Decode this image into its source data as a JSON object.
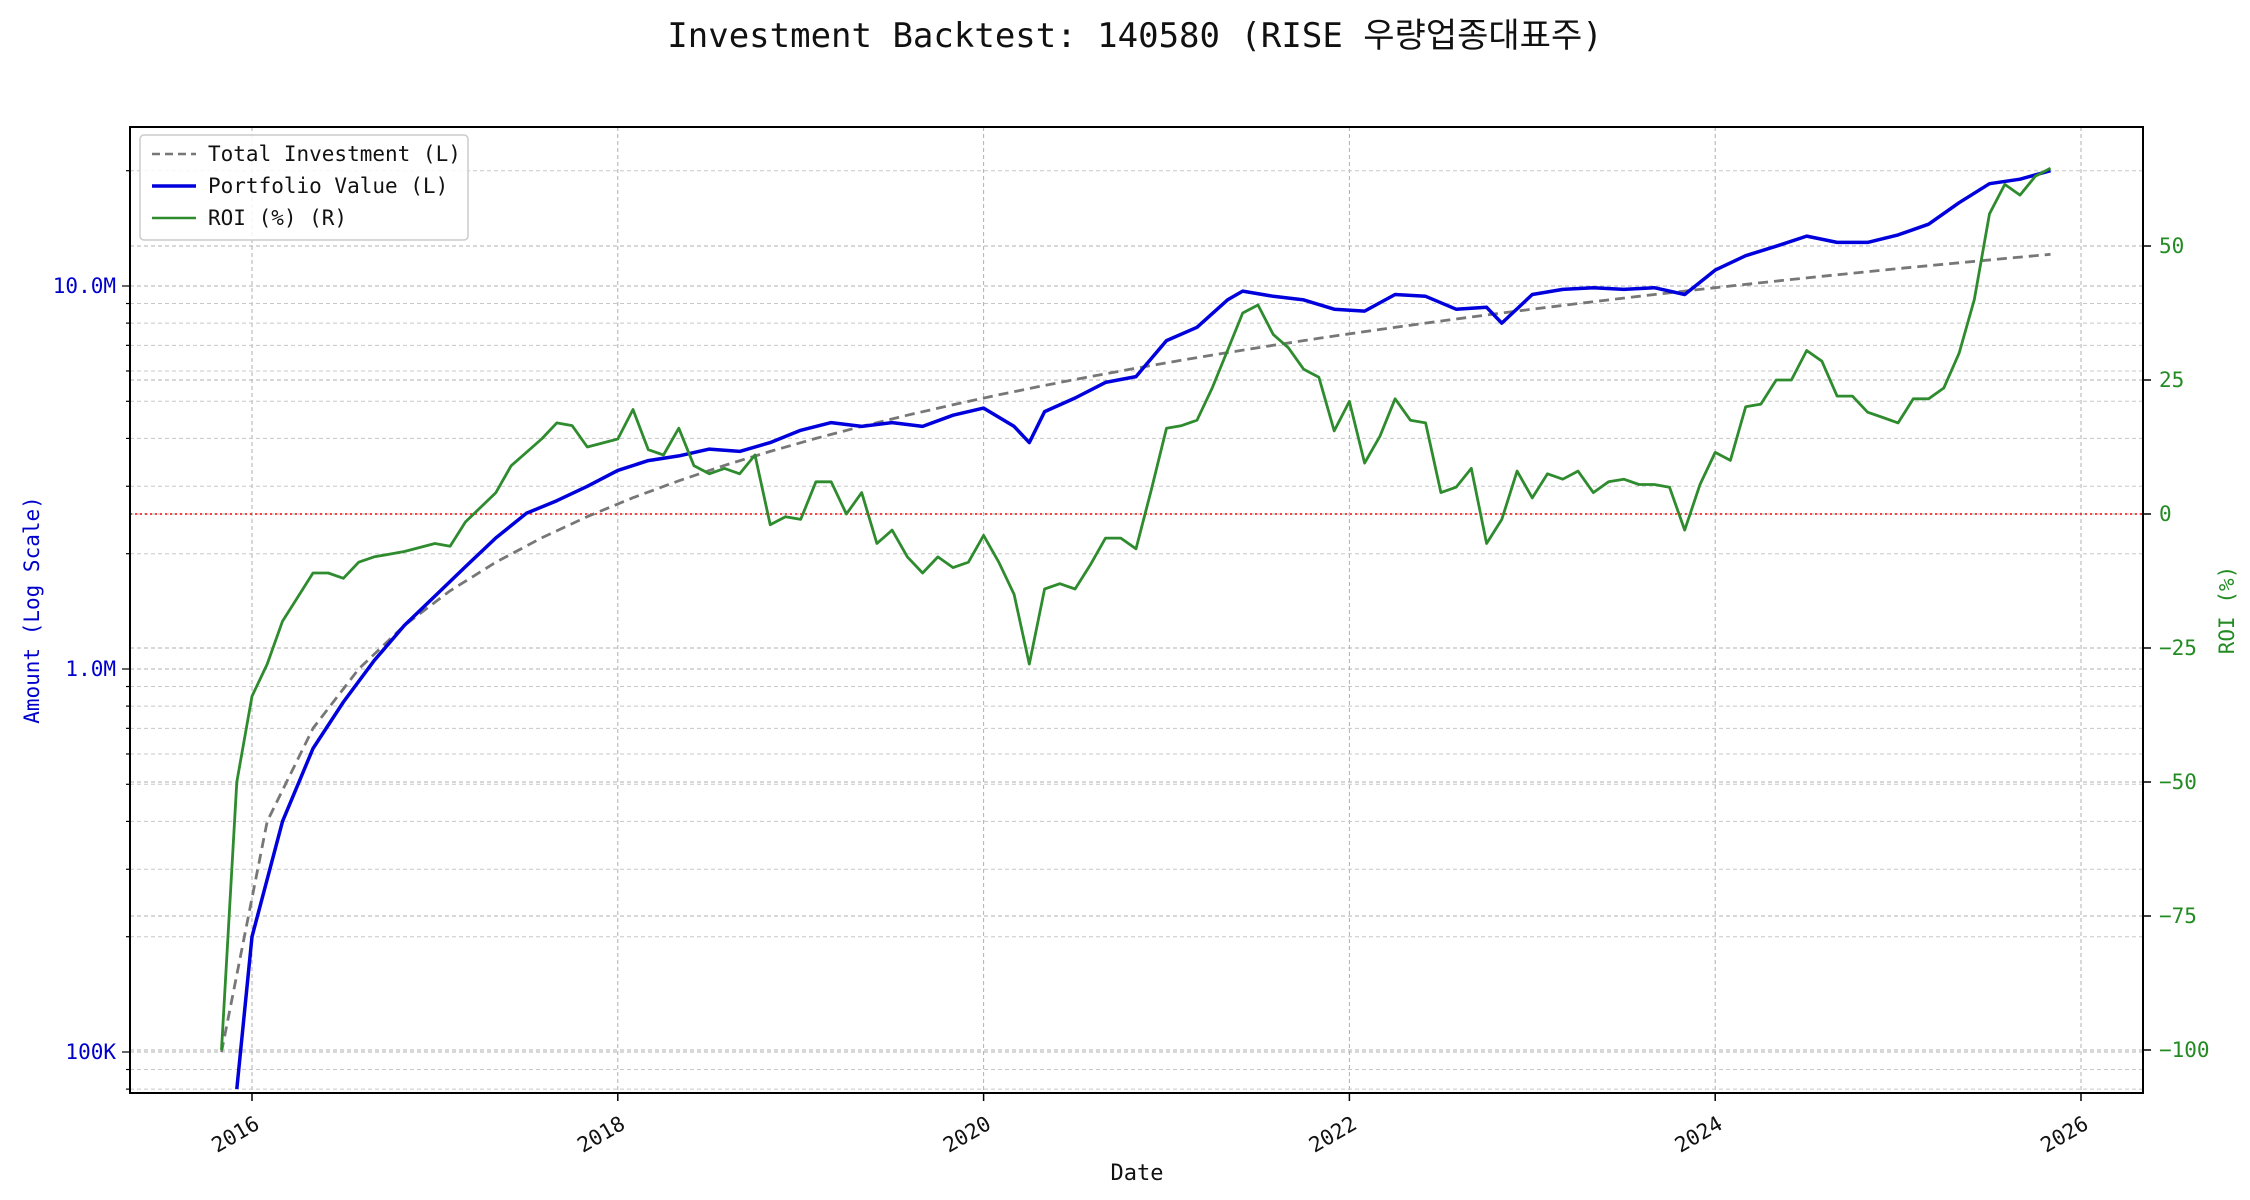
{
  "chart_data": {
    "type": "line",
    "title": "Investment Backtest: 140580 (RISE 우량업종대표주)",
    "xlabel": "Date",
    "ylabel_left": "Amount (Log Scale)",
    "ylabel_right": "ROI (%)",
    "y_left_scale": "log",
    "y_left_ticks": [
      "100K",
      "1.0M",
      "10.0M"
    ],
    "y_right_ticks": [
      "−100",
      "−75",
      "−50",
      "−25",
      "0",
      "25",
      "50"
    ],
    "x_ticks": [
      "2016",
      "2018",
      "2020",
      "2022",
      "2024",
      "2026"
    ],
    "grid": true,
    "legend_position": "top-left",
    "reference_line": {
      "axis": "right",
      "value": 0,
      "color": "#ff0000",
      "style": "dotted"
    },
    "colors": {
      "total": "#777777",
      "portfolio": "#0000dd",
      "roi": "#2e8b2e"
    },
    "series": [
      {
        "name": "Total Investment (L)",
        "axis": "left",
        "style": "dashed",
        "x": [
          "2015-11",
          "2016-02",
          "2016-05",
          "2016-08",
          "2016-11",
          "2017-02",
          "2017-05",
          "2017-08",
          "2017-11",
          "2018-02",
          "2018-05",
          "2018-08",
          "2018-11",
          "2019-02",
          "2019-05",
          "2019-08",
          "2019-11",
          "2020-02",
          "2020-05",
          "2020-08",
          "2020-11",
          "2021-02",
          "2021-05",
          "2021-08",
          "2021-11",
          "2022-02",
          "2022-05",
          "2022-08",
          "2022-11",
          "2023-02",
          "2023-05",
          "2023-08",
          "2023-11",
          "2024-02",
          "2024-05",
          "2024-08",
          "2024-11",
          "2025-02",
          "2025-05",
          "2025-08",
          "2025-11"
        ],
        "values": [
          100000,
          400000,
          700000,
          1000000,
          1300000,
          1600000,
          1900000,
          2200000,
          2500000,
          2800000,
          3100000,
          3400000,
          3700000,
          4000000,
          4300000,
          4600000,
          4900000,
          5200000,
          5500000,
          5800000,
          6100000,
          6400000,
          6700000,
          7000000,
          7300000,
          7600000,
          7900000,
          8200000,
          8500000,
          8800000,
          9100000,
          9400000,
          9700000,
          10000000,
          10300000,
          10600000,
          10900000,
          11200000,
          11500000,
          11800000,
          12100000
        ]
      },
      {
        "name": "Portfolio Value (L)",
        "axis": "left",
        "style": "solid",
        "x": [
          "2015-12",
          "2016-01",
          "2016-03",
          "2016-05",
          "2016-07",
          "2016-09",
          "2016-11",
          "2017-01",
          "2017-03",
          "2017-05",
          "2017-07",
          "2017-09",
          "2017-11",
          "2018-01",
          "2018-03",
          "2018-05",
          "2018-07",
          "2018-09",
          "2018-11",
          "2019-01",
          "2019-03",
          "2019-05",
          "2019-07",
          "2019-09",
          "2019-11",
          "2020-01",
          "2020-03",
          "2020-04",
          "2020-05",
          "2020-07",
          "2020-09",
          "2020-11",
          "2021-01",
          "2021-03",
          "2021-05",
          "2021-06",
          "2021-08",
          "2021-10",
          "2021-12",
          "2022-02",
          "2022-04",
          "2022-06",
          "2022-08",
          "2022-10",
          "2022-11",
          "2023-01",
          "2023-03",
          "2023-05",
          "2023-07",
          "2023-09",
          "2023-11",
          "2024-01",
          "2024-03",
          "2024-05",
          "2024-07",
          "2024-09",
          "2024-11",
          "2025-01",
          "2025-03",
          "2025-05",
          "2025-07",
          "2025-09",
          "2025-11"
        ],
        "values": [
          80000,
          200000,
          400000,
          620000,
          820000,
          1050000,
          1300000,
          1550000,
          1850000,
          2200000,
          2550000,
          2750000,
          3000000,
          3300000,
          3500000,
          3600000,
          3750000,
          3700000,
          3900000,
          4200000,
          4400000,
          4300000,
          4400000,
          4300000,
          4600000,
          4800000,
          4300000,
          3900000,
          4700000,
          5100000,
          5600000,
          5800000,
          7200000,
          7800000,
          9200000,
          9700000,
          9400000,
          9200000,
          8700000,
          8600000,
          9500000,
          9400000,
          8700000,
          8800000,
          8000000,
          9500000,
          9800000,
          9900000,
          9800000,
          9900000,
          9500000,
          11000000,
          12000000,
          12700000,
          13500000,
          13000000,
          13000000,
          13600000,
          14500000,
          16500000,
          18500000,
          19000000,
          20000000
        ]
      },
      {
        "name": "ROI (%) (R)",
        "axis": "right",
        "style": "solid",
        "x": [
          "2015-11",
          "2015-12",
          "2016-01",
          "2016-02",
          "2016-03",
          "2016-05",
          "2016-06",
          "2016-07",
          "2016-08",
          "2016-09",
          "2016-11",
          "2017-01",
          "2017-02",
          "2017-03",
          "2017-05",
          "2017-06",
          "2017-08",
          "2017-09",
          "2017-10",
          "2017-11",
          "2018-01",
          "2018-02",
          "2018-03",
          "2018-04",
          "2018-05",
          "2018-06",
          "2018-07",
          "2018-08",
          "2018-09",
          "2018-10",
          "2018-11",
          "2018-12",
          "2019-01",
          "2019-02",
          "2019-03",
          "2019-04",
          "2019-05",
          "2019-06",
          "2019-07",
          "2019-08",
          "2019-09",
          "2019-10",
          "2019-11",
          "2019-12",
          "2020-01",
          "2020-02",
          "2020-03",
          "2020-04",
          "2020-05",
          "2020-06",
          "2020-07",
          "2020-08",
          "2020-09",
          "2020-10",
          "2020-11",
          "2020-12",
          "2021-01",
          "2021-02",
          "2021-03",
          "2021-04",
          "2021-05",
          "2021-06",
          "2021-07",
          "2021-08",
          "2021-09",
          "2021-10",
          "2021-11",
          "2021-12",
          "2022-01",
          "2022-02",
          "2022-03",
          "2022-04",
          "2022-05",
          "2022-06",
          "2022-07",
          "2022-08",
          "2022-09",
          "2022-10",
          "2022-11",
          "2022-12",
          "2023-01",
          "2023-02",
          "2023-03",
          "2023-04",
          "2023-05",
          "2023-06",
          "2023-07",
          "2023-08",
          "2023-09",
          "2023-10",
          "2023-11",
          "2023-12",
          "2024-01",
          "2024-02",
          "2024-03",
          "2024-04",
          "2024-05",
          "2024-06",
          "2024-07",
          "2024-08",
          "2024-09",
          "2024-10",
          "2024-11",
          "2024-12",
          "2025-01",
          "2025-02",
          "2025-03",
          "2025-04",
          "2025-05",
          "2025-06",
          "2025-07",
          "2025-08",
          "2025-09",
          "2025-10",
          "2025-11"
        ],
        "values": [
          -100,
          -50,
          -34,
          -28,
          -20,
          -11,
          -11,
          -12,
          -9,
          -8,
          -7,
          -5.5,
          -6,
          -1.5,
          4,
          9,
          14,
          17,
          16.5,
          12.5,
          14,
          19.5,
          12,
          11,
          16,
          9,
          7.5,
          8.5,
          7.5,
          11,
          -2,
          -0.5,
          -1,
          6,
          6,
          0,
          4,
          -5.5,
          -3,
          -8,
          -11,
          -8,
          -10,
          -9,
          -4,
          -9,
          -15,
          -28,
          -14,
          -13,
          -14,
          -9.5,
          -4.5,
          -4.5,
          -6.5,
          4.5,
          16,
          16.5,
          17.5,
          23.5,
          30.5,
          37.5,
          39,
          33.5,
          31,
          27,
          25.5,
          15.5,
          21,
          9.5,
          14.5,
          21.5,
          17.5,
          17,
          4,
          5,
          8.5,
          -5.5,
          -1,
          8,
          3,
          7.5,
          6.5,
          8,
          4,
          6,
          6.5,
          5.5,
          5.5,
          5,
          -3,
          5.5,
          11.5,
          10,
          20,
          20.5,
          25,
          25,
          30.5,
          28.5,
          22,
          22,
          19,
          18,
          17,
          21.5,
          21.5,
          23.5,
          30,
          40,
          56,
          61.5,
          59.5,
          63,
          64.5
        ]
      }
    ]
  }
}
